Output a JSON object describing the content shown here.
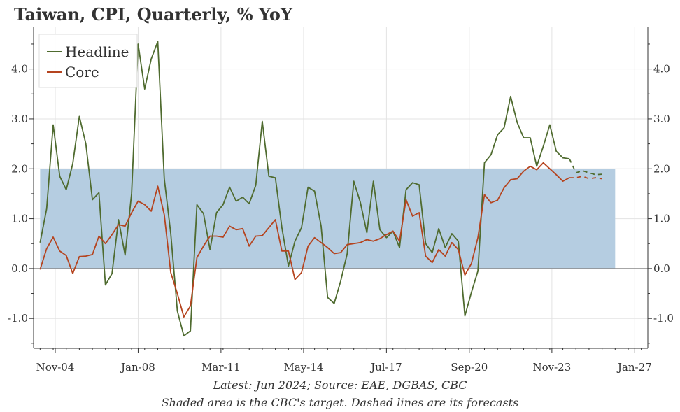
{
  "chart_data": {
    "type": "line",
    "title": "Taiwan, CPI, Quarterly, % YoY",
    "xlabel": "",
    "ylabel": "",
    "ylim": [
      -1.6,
      4.85
    ],
    "yticks": [
      "4.0",
      "3.0",
      "2.0",
      "1.0",
      "0.0",
      "-1.0"
    ],
    "ytick_values": [
      4,
      3,
      2,
      1,
      0,
      -1
    ],
    "x_start": 2004.0,
    "x_end": 2027.5,
    "xticks": [
      {
        "label": "Nov-04",
        "x": 2004.83
      },
      {
        "label": "Jan-08",
        "x": 2008.0
      },
      {
        "label": "Mar-11",
        "x": 2011.17
      },
      {
        "label": "May-14",
        "x": 2014.33
      },
      {
        "label": "Jul-17",
        "x": 2017.5
      },
      {
        "label": "Sep-20",
        "x": 2020.67
      },
      {
        "label": "Nov-23",
        "x": 2023.83
      },
      {
        "label": "Jan-27",
        "x": 2027.0
      }
    ],
    "target_band": {
      "low": 0.0,
      "high": 2.0,
      "x_from": 2004.25,
      "x_to": 2026.25
    },
    "quarters_start": 2004.25,
    "quarter_step": 0.25,
    "forecast_from_index": 81,
    "legend": [
      "Headline",
      "Core"
    ],
    "legend_position": "top-left",
    "series": [
      {
        "name": "Headline",
        "color": "#4f6b2f",
        "values": [
          0.52,
          1.2,
          2.88,
          1.85,
          1.58,
          2.1,
          3.05,
          2.5,
          1.38,
          1.52,
          -0.33,
          -0.1,
          0.98,
          0.27,
          1.5,
          4.5,
          3.6,
          4.2,
          4.55,
          1.8,
          0.7,
          -0.85,
          -1.35,
          -1.25,
          1.28,
          1.1,
          0.38,
          1.12,
          1.28,
          1.63,
          1.35,
          1.43,
          1.3,
          1.67,
          2.95,
          1.85,
          1.82,
          0.82,
          0.05,
          0.55,
          0.82,
          1.63,
          1.55,
          0.85,
          -0.58,
          -0.7,
          -0.25,
          0.3,
          1.75,
          1.33,
          0.72,
          1.75,
          0.78,
          0.62,
          0.75,
          0.42,
          1.58,
          1.72,
          1.68,
          0.5,
          0.32,
          0.8,
          0.42,
          0.7,
          0.55,
          -0.95,
          -0.48,
          -0.05,
          2.12,
          2.28,
          2.68,
          2.82,
          3.45,
          2.93,
          2.62,
          2.62,
          2.05,
          2.45,
          2.88,
          2.35,
          2.22,
          2.2,
          1.92,
          1.96,
          1.92,
          1.88,
          1.89
        ]
      },
      {
        "name": "Core",
        "color": "#b5441f",
        "values": [
          -0.02,
          0.4,
          0.63,
          0.35,
          0.26,
          -0.1,
          0.24,
          0.25,
          0.28,
          0.65,
          0.5,
          0.68,
          0.88,
          0.85,
          1.12,
          1.35,
          1.28,
          1.15,
          1.65,
          1.08,
          -0.08,
          -0.5,
          -0.97,
          -0.75,
          0.22,
          0.45,
          0.65,
          0.65,
          0.63,
          0.85,
          0.78,
          0.8,
          0.45,
          0.65,
          0.66,
          0.82,
          0.98,
          0.35,
          0.35,
          -0.22,
          -0.08,
          0.45,
          0.62,
          0.52,
          0.42,
          0.3,
          0.32,
          0.48,
          0.5,
          0.52,
          0.58,
          0.55,
          0.6,
          0.68,
          0.75,
          0.55,
          1.38,
          1.05,
          1.12,
          0.25,
          0.12,
          0.38,
          0.25,
          0.52,
          0.38,
          -0.13,
          0.1,
          0.62,
          1.48,
          1.32,
          1.37,
          1.62,
          1.78,
          1.8,
          1.95,
          2.05,
          1.98,
          2.12,
          2.0,
          1.88,
          1.75,
          1.82,
          1.82,
          1.85,
          1.8,
          1.82,
          1.8
        ]
      }
    ],
    "footnotes": [
      "Latest: Jun 2024; Source: EAE, DGBAS, CBC",
      "Shaded area is the CBC's target. Dashed lines are its forecasts"
    ],
    "colors": {
      "band": "#b5cde1",
      "grid": "#e3e3e3",
      "zero_line": "#8a8a8a",
      "axis": "#333333"
    }
  }
}
